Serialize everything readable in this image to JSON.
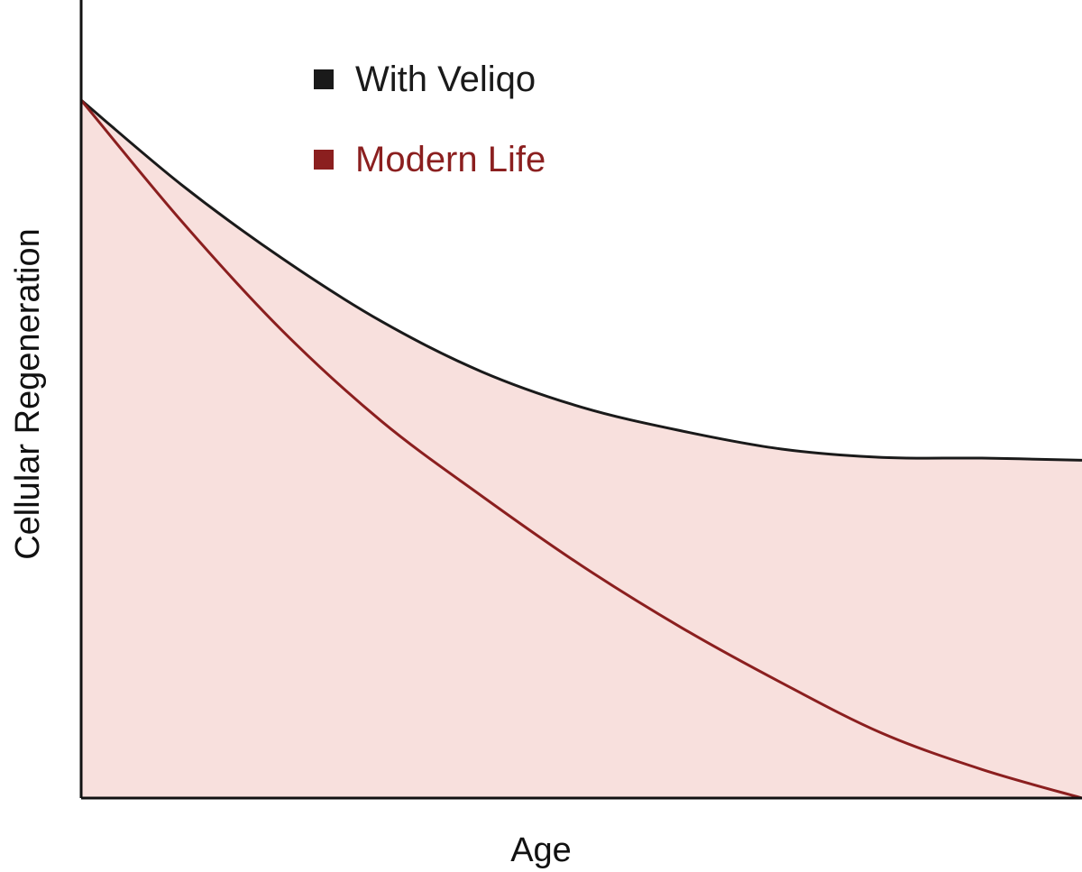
{
  "chart_data": {
    "type": "area",
    "xlabel": "Age",
    "ylabel": "Cellular Regeneration",
    "title": "",
    "xlim": [
      0,
      100
    ],
    "ylim": [
      0,
      100
    ],
    "grid": false,
    "legend_position": "top-left",
    "series": [
      {
        "name": "With Veliqo",
        "color": "#1a1a1a",
        "fill": "#f8e0dd",
        "x": [
          0,
          10,
          20,
          30,
          40,
          50,
          60,
          70,
          80,
          90,
          100
        ],
        "y": [
          100,
          87.9,
          77.4,
          68.3,
          61.1,
          56.0,
          52.6,
          50.0,
          48.8,
          48.7,
          48.4
        ]
      },
      {
        "name": "Modern Life",
        "color": "#8b1f1f",
        "x": [
          0,
          10,
          20,
          30,
          40,
          50,
          60,
          70,
          80,
          90,
          100
        ],
        "y": [
          100,
          82.7,
          67.1,
          54.0,
          43.3,
          33.3,
          24.4,
          16.5,
          9.3,
          4.1,
          0
        ]
      }
    ]
  }
}
